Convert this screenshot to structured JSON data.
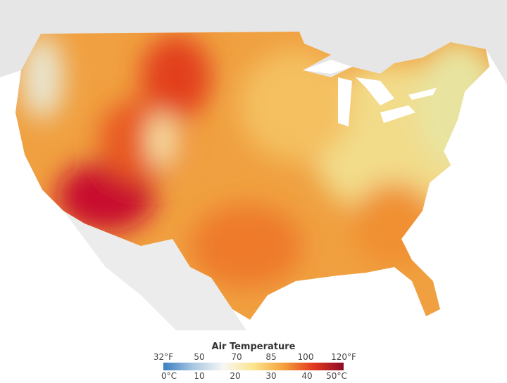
{
  "legend": {
    "title": "Air Temperature",
    "fahrenheit_ticks": [
      "32°F",
      "50",
      "70",
      "85",
      "100",
      "120°F"
    ],
    "celsius_ticks": [
      "0°C",
      "10",
      "20",
      "30",
      "40",
      "50°C"
    ],
    "colors": [
      "#3a7fc0",
      "#a9c8e2",
      "#f7f7f5",
      "#fbe58c",
      "#f5a13c",
      "#e2391f",
      "#8e0a26"
    ]
  },
  "colors": {
    "land": "#e4e4e4",
    "water": "#ffffff",
    "hot": "#c8102e",
    "warm": "#f08a2c",
    "mild": "#f2d67a"
  }
}
